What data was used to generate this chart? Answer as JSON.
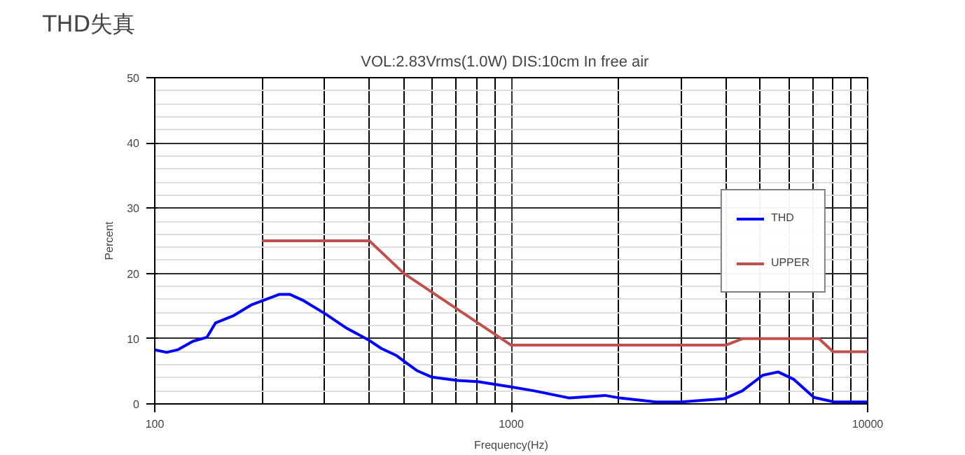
{
  "chart_data": {
    "type": "line",
    "title": "THD失真",
    "subtitle": "VOL:2.83Vrms(1.0W)  DIS:10cm   In free air",
    "xlabel": "Frequency(Hz)",
    "ylabel": "Percent",
    "log": "x",
    "xlim": [
      100,
      10000
    ],
    "xticks": [
      100,
      1000,
      10000
    ],
    "ylim": [
      0,
      50
    ],
    "yticks": [
      0,
      10,
      20,
      30,
      40,
      50
    ],
    "grid": true,
    "legend": "right",
    "series": [
      {
        "name": "THD",
        "color": "#0000ff",
        "x": [
          100,
          108,
          116,
          128,
          140,
          148,
          166,
          187,
          224,
          239,
          260,
          301,
          343,
          398,
          432,
          477,
          510,
          544,
          600,
          707,
          808,
          1000,
          1161,
          1457,
          1832,
          2020,
          2548,
          2990,
          3960,
          4450,
          5080,
          5610,
          6190,
          7070,
          8060,
          10000
        ],
        "values": [
          8.3,
          7.9,
          8.3,
          9.6,
          10.2,
          12.4,
          13.5,
          15.2,
          16.8,
          16.8,
          15.9,
          13.8,
          11.7,
          9.8,
          8.5,
          7.4,
          6.2,
          5.1,
          4.1,
          3.6,
          3.4,
          2.6,
          2.0,
          0.9,
          1.3,
          0.9,
          0.3,
          0.3,
          0.8,
          2.0,
          4.4,
          4.9,
          3.8,
          1.0,
          0.3,
          0.3
        ]
      },
      {
        "name": "UPPER",
        "color": "#c0504d",
        "x": [
          200,
          400,
          500,
          1000,
          4000,
          4450,
          7300,
          8000,
          10000
        ],
        "values": [
          25,
          25,
          20,
          9,
          9,
          10,
          10,
          8,
          8
        ]
      }
    ]
  }
}
